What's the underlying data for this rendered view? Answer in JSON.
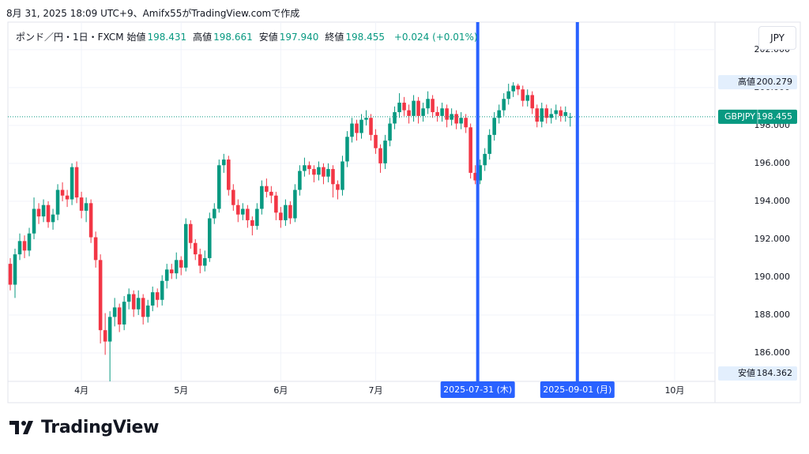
{
  "header": {
    "credit": "8月 31, 2025 18:09 UTC+9、Amifx55がTradingView.comで作成",
    "symbol": "ポンド／円・1日・FXCM",
    "fields": [
      {
        "label": "始値",
        "value": "198.431"
      },
      {
        "label": "高値",
        "value": "198.661"
      },
      {
        "label": "安値",
        "value": "197.940"
      },
      {
        "label": "終値",
        "value": "198.455"
      }
    ],
    "change": "+0.024 (+0.01%)",
    "currency": "JPY"
  },
  "chart_data": {
    "type": "candlestick",
    "up_color": "#089981",
    "down_color": "#f23645",
    "grid": true,
    "xlim": [
      -0.5,
      148.5
    ],
    "ylim": [
      184.5,
      203.45
    ],
    "xticks": [
      {
        "value": 15,
        "label": "4月"
      },
      {
        "value": 36,
        "label": "5月"
      },
      {
        "value": 57,
        "label": "6月"
      },
      {
        "value": 77,
        "label": "7月"
      },
      {
        "value": 140,
        "label": "10月"
      }
    ],
    "yticks": [
      {
        "value": 186,
        "label": "186.000"
      },
      {
        "value": 188,
        "label": "188.000"
      },
      {
        "value": 190,
        "label": "190.000"
      },
      {
        "value": 192,
        "label": "192.000"
      },
      {
        "value": 194,
        "label": "194.000"
      },
      {
        "value": 196,
        "label": "196.000"
      },
      {
        "value": 198,
        "label": "198.000"
      },
      {
        "value": 200,
        "label": "200.000"
      },
      {
        "value": 202,
        "label": "202.000"
      }
    ],
    "ohlc": [
      [
        190.7,
        191.0,
        189.3,
        189.6
      ],
      [
        189.6,
        191.5,
        188.9,
        191.2
      ],
      [
        191.2,
        192.3,
        190.9,
        191.9
      ],
      [
        191.9,
        192.2,
        191.0,
        191.4
      ],
      [
        191.4,
        192.6,
        191.1,
        192.3
      ],
      [
        192.3,
        194.2,
        192.0,
        193.6
      ],
      [
        193.6,
        193.9,
        192.8,
        193.2
      ],
      [
        193.2,
        194.1,
        192.9,
        193.8
      ],
      [
        193.8,
        194.0,
        192.6,
        192.9
      ],
      [
        192.9,
        193.6,
        192.5,
        193.3
      ],
      [
        193.3,
        194.9,
        193.0,
        194.6
      ],
      [
        194.6,
        195.0,
        194.0,
        194.3
      ],
      [
        194.3,
        194.6,
        193.7,
        194.1
      ],
      [
        194.1,
        196.0,
        193.8,
        195.8
      ],
      [
        195.8,
        196.1,
        193.9,
        194.2
      ],
      [
        194.2,
        194.5,
        193.1,
        193.5
      ],
      [
        193.5,
        194.2,
        192.9,
        193.9
      ],
      [
        193.9,
        194.1,
        191.8,
        192.1
      ],
      [
        192.1,
        192.4,
        190.5,
        190.9
      ],
      [
        190.9,
        191.2,
        186.5,
        187.2
      ],
      [
        187.2,
        188.1,
        185.9,
        186.6
      ],
      [
        186.6,
        188.2,
        184.362,
        187.9
      ],
      [
        187.9,
        188.9,
        187.4,
        188.4
      ],
      [
        188.4,
        188.6,
        187.1,
        187.5
      ],
      [
        187.5,
        189.0,
        187.2,
        188.7
      ],
      [
        188.7,
        189.4,
        188.3,
        189.1
      ],
      [
        189.1,
        189.3,
        187.9,
        188.3
      ],
      [
        188.3,
        189.3,
        188.0,
        188.9
      ],
      [
        188.9,
        189.1,
        187.5,
        187.9
      ],
      [
        187.9,
        188.8,
        187.6,
        188.5
      ],
      [
        188.5,
        189.5,
        188.2,
        189.2
      ],
      [
        189.2,
        189.4,
        188.4,
        188.8
      ],
      [
        188.8,
        190.1,
        188.5,
        189.8
      ],
      [
        189.8,
        190.7,
        189.4,
        190.4
      ],
      [
        190.4,
        190.7,
        189.9,
        190.2
      ],
      [
        190.2,
        191.3,
        189.9,
        190.9
      ],
      [
        190.9,
        191.1,
        190.1,
        190.5
      ],
      [
        190.5,
        193.1,
        190.3,
        192.8
      ],
      [
        192.8,
        193.0,
        191.5,
        191.8
      ],
      [
        191.8,
        192.0,
        190.9,
        191.2
      ],
      [
        191.2,
        191.5,
        190.2,
        190.6
      ],
      [
        190.6,
        191.4,
        190.3,
        191.0
      ],
      [
        191.0,
        193.4,
        190.8,
        193.1
      ],
      [
        193.1,
        193.9,
        192.8,
        193.6
      ],
      [
        193.6,
        196.2,
        193.4,
        195.9
      ],
      [
        195.9,
        196.5,
        195.5,
        196.2
      ],
      [
        196.2,
        196.4,
        194.3,
        194.6
      ],
      [
        194.6,
        194.9,
        193.5,
        193.8
      ],
      [
        193.8,
        194.1,
        192.9,
        193.3
      ],
      [
        193.3,
        193.9,
        193.0,
        193.6
      ],
      [
        193.6,
        193.8,
        192.6,
        193.0
      ],
      [
        193.0,
        193.2,
        192.2,
        192.7
      ],
      [
        192.7,
        193.9,
        192.5,
        193.6
      ],
      [
        193.6,
        195.1,
        193.3,
        194.8
      ],
      [
        194.8,
        195.2,
        194.2,
        194.5
      ],
      [
        194.5,
        194.8,
        193.9,
        194.3
      ],
      [
        194.3,
        194.5,
        193.0,
        193.4
      ],
      [
        193.4,
        193.7,
        192.6,
        193.0
      ],
      [
        193.0,
        194.1,
        192.7,
        193.8
      ],
      [
        193.8,
        194.0,
        192.8,
        193.1
      ],
      [
        193.1,
        194.9,
        192.9,
        194.6
      ],
      [
        194.6,
        195.9,
        194.3,
        195.6
      ],
      [
        195.6,
        196.3,
        195.3,
        195.9
      ],
      [
        195.9,
        196.1,
        195.4,
        195.7
      ],
      [
        195.7,
        195.9,
        195.0,
        195.4
      ],
      [
        195.4,
        196.1,
        195.1,
        195.8
      ],
      [
        195.8,
        196.0,
        194.9,
        195.3
      ],
      [
        195.3,
        196.0,
        195.0,
        195.7
      ],
      [
        195.7,
        195.9,
        194.2,
        194.9
      ],
      [
        194.9,
        195.1,
        194.1,
        194.6
      ],
      [
        194.6,
        196.4,
        194.3,
        196.1
      ],
      [
        196.1,
        197.7,
        195.8,
        197.4
      ],
      [
        197.4,
        198.4,
        197.1,
        198.1
      ],
      [
        198.1,
        198.3,
        197.2,
        197.6
      ],
      [
        197.6,
        198.6,
        197.3,
        198.3
      ],
      [
        198.3,
        198.8,
        198.0,
        198.4
      ],
      [
        198.4,
        198.6,
        197.2,
        197.5
      ],
      [
        197.5,
        197.8,
        196.5,
        196.8
      ],
      [
        196.8,
        197.0,
        195.5,
        196.0
      ],
      [
        196.0,
        197.5,
        195.7,
        197.2
      ],
      [
        197.2,
        198.4,
        196.9,
        198.1
      ],
      [
        198.1,
        199.0,
        197.8,
        198.7
      ],
      [
        198.7,
        199.7,
        198.4,
        199.2
      ],
      [
        199.2,
        199.5,
        198.5,
        198.8
      ],
      [
        198.8,
        199.1,
        198.1,
        198.5
      ],
      [
        198.5,
        199.6,
        198.2,
        199.3
      ],
      [
        199.3,
        199.5,
        198.1,
        198.5
      ],
      [
        198.5,
        199.2,
        198.2,
        198.9
      ],
      [
        198.9,
        199.8,
        198.6,
        199.4
      ],
      [
        199.4,
        199.6,
        198.4,
        198.7
      ],
      [
        198.7,
        199.0,
        198.2,
        198.5
      ],
      [
        198.5,
        199.2,
        198.2,
        198.9
      ],
      [
        198.9,
        199.1,
        197.9,
        198.3
      ],
      [
        198.3,
        198.9,
        198.0,
        198.6
      ],
      [
        198.6,
        198.8,
        197.8,
        198.1
      ],
      [
        198.1,
        198.7,
        197.8,
        198.4
      ],
      [
        198.4,
        198.6,
        197.6,
        197.9
      ],
      [
        197.9,
        198.1,
        195.2,
        195.5
      ],
      [
        195.5,
        195.9,
        194.9,
        195.1
      ],
      [
        195.1,
        196.2,
        194.9,
        195.9
      ],
      [
        195.9,
        196.8,
        195.6,
        196.5
      ],
      [
        196.5,
        197.8,
        196.2,
        197.5
      ],
      [
        197.5,
        198.7,
        197.2,
        198.4
      ],
      [
        198.4,
        199.1,
        198.1,
        198.8
      ],
      [
        198.8,
        199.7,
        198.5,
        199.4
      ],
      [
        199.4,
        200.2,
        199.1,
        199.8
      ],
      [
        199.8,
        200.279,
        199.5,
        200.1
      ],
      [
        200.1,
        200.2,
        199.6,
        199.9
      ],
      [
        199.9,
        200.1,
        199.0,
        199.3
      ],
      [
        199.3,
        199.9,
        199.0,
        199.6
      ],
      [
        199.6,
        199.8,
        198.6,
        198.9
      ],
      [
        198.9,
        199.1,
        197.9,
        198.2
      ],
      [
        198.2,
        199.2,
        197.9,
        198.9
      ],
      [
        198.9,
        199.1,
        198.1,
        198.4
      ],
      [
        198.4,
        198.9,
        198.1,
        198.6
      ],
      [
        198.6,
        199.1,
        198.3,
        198.8
      ],
      [
        198.8,
        199.0,
        198.2,
        198.5
      ],
      [
        198.5,
        199.0,
        198.2,
        198.7
      ],
      [
        198.431,
        198.661,
        197.94,
        198.455
      ]
    ],
    "high_marker": {
      "label": "高値",
      "value": 200.279
    },
    "low_marker": {
      "label": "安値",
      "value": 184.362
    },
    "last_marker": {
      "label": "GBPJPY",
      "value": 198.455,
      "color": "#089981"
    },
    "vlines": [
      {
        "x": 98.5,
        "label": "2025-07-31 (木)"
      },
      {
        "x": 119.5,
        "label": "2025-09-01 (月)"
      }
    ],
    "vline_color": "#2962ff"
  },
  "footer": {
    "brand": "TradingView"
  }
}
